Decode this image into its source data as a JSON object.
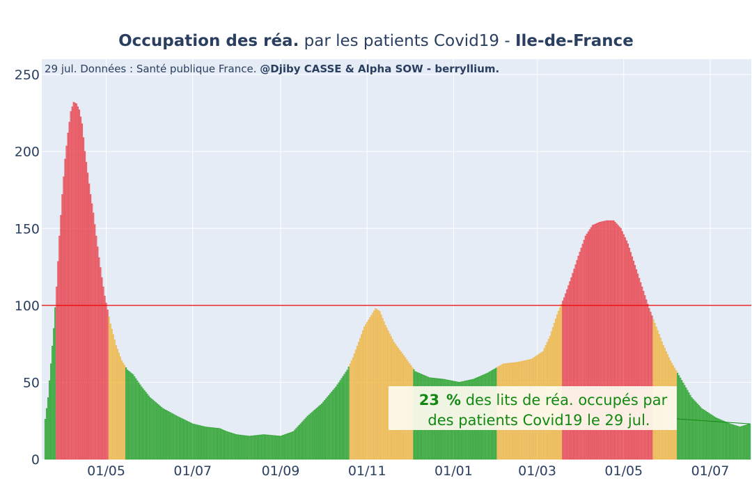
{
  "title": {
    "part1": "Occupation des réa.",
    "part2": " par les patients Covid19 - ",
    "part3": "Ile-de-France"
  },
  "subtitle": {
    "prefix": "29 jul. Données : Santé publique France. ",
    "credits": "@Djiby CASSE & Alpha SOW - berryllium."
  },
  "annotation": {
    "percent": "23",
    "percent_sign": "%",
    "line1_rest": " des lits de réa. occupés par",
    "line2": "des patients Covid19 le 29 jul."
  },
  "colors": {
    "plot_bg": "#e5ecf6",
    "grid": "#ffffff",
    "threshold_line": "#ee0000",
    "green": "#119911",
    "orange": "#f0b030",
    "red": "#e8303a",
    "text": "#2a3f5f",
    "annotation_text": "#118811",
    "annotation_bg": "#fdfaee"
  },
  "chart_data": {
    "type": "bar",
    "x_start": "2020-03-19",
    "x_end": "2021-07-29",
    "ylim": [
      0,
      260
    ],
    "yticks": [
      0,
      50,
      100,
      150,
      200,
      250
    ],
    "xticks": [
      {
        "date": "2020-05-01",
        "label": "01/05"
      },
      {
        "date": "2020-07-01",
        "label": "01/07"
      },
      {
        "date": "2020-09-01",
        "label": "01/09"
      },
      {
        "date": "2020-11-01",
        "label": "01/11"
      },
      {
        "date": "2021-01-01",
        "label": "01/01"
      },
      {
        "date": "2021-03-01",
        "label": "01/03"
      },
      {
        "date": "2021-05-01",
        "label": "01/05"
      },
      {
        "date": "2021-07-01",
        "label": "01/07"
      }
    ],
    "threshold": 100,
    "grid": true,
    "legend": "none",
    "points": [
      [
        "2020-03-19",
        26
      ],
      [
        "2020-03-21",
        40
      ],
      [
        "2020-03-23",
        62
      ],
      [
        "2020-03-25",
        85
      ],
      [
        "2020-03-27",
        112
      ],
      [
        "2020-03-29",
        145
      ],
      [
        "2020-03-31",
        172
      ],
      [
        "2020-04-02",
        195
      ],
      [
        "2020-04-04",
        212
      ],
      [
        "2020-04-06",
        226
      ],
      [
        "2020-04-08",
        232
      ],
      [
        "2020-04-10",
        231
      ],
      [
        "2020-04-12",
        227
      ],
      [
        "2020-04-14",
        218
      ],
      [
        "2020-04-16",
        200
      ],
      [
        "2020-04-18",
        186
      ],
      [
        "2020-04-20",
        172
      ],
      [
        "2020-04-22",
        160
      ],
      [
        "2020-04-24",
        145
      ],
      [
        "2020-04-26",
        131
      ],
      [
        "2020-04-28",
        118
      ],
      [
        "2020-04-30",
        106
      ],
      [
        "2020-05-02",
        97
      ],
      [
        "2020-05-04",
        88
      ],
      [
        "2020-05-08",
        74
      ],
      [
        "2020-05-12",
        64
      ],
      [
        "2020-05-16",
        58
      ],
      [
        "2020-05-20",
        55
      ],
      [
        "2020-05-26",
        47
      ],
      [
        "2020-06-01",
        40
      ],
      [
        "2020-06-10",
        33
      ],
      [
        "2020-06-20",
        28
      ],
      [
        "2020-07-01",
        23
      ],
      [
        "2020-07-10",
        21
      ],
      [
        "2020-07-20",
        20
      ],
      [
        "2020-07-25",
        18
      ],
      [
        "2020-08-01",
        16
      ],
      [
        "2020-08-10",
        15
      ],
      [
        "2020-08-20",
        16
      ],
      [
        "2020-09-01",
        15
      ],
      [
        "2020-09-10",
        18
      ],
      [
        "2020-09-20",
        28
      ],
      [
        "2020-09-30",
        36
      ],
      [
        "2020-10-10",
        47
      ],
      [
        "2020-10-18",
        58
      ],
      [
        "2020-10-22",
        66
      ],
      [
        "2020-10-26",
        76
      ],
      [
        "2020-10-30",
        86
      ],
      [
        "2020-11-03",
        92
      ],
      [
        "2020-11-07",
        98
      ],
      [
        "2020-11-10",
        96
      ],
      [
        "2020-11-14",
        87
      ],
      [
        "2020-11-20",
        76
      ],
      [
        "2020-11-28",
        66
      ],
      [
        "2020-12-05",
        57
      ],
      [
        "2020-12-15",
        53
      ],
      [
        "2020-12-25",
        52
      ],
      [
        "2021-01-05",
        50
      ],
      [
        "2021-01-15",
        52
      ],
      [
        "2021-01-25",
        56
      ],
      [
        "2021-02-05",
        62
      ],
      [
        "2021-02-15",
        63
      ],
      [
        "2021-02-25",
        65
      ],
      [
        "2021-03-05",
        70
      ],
      [
        "2021-03-10",
        80
      ],
      [
        "2021-03-15",
        94
      ],
      [
        "2021-03-20",
        105
      ],
      [
        "2021-03-25",
        118
      ],
      [
        "2021-03-30",
        132
      ],
      [
        "2021-04-04",
        145
      ],
      [
        "2021-04-09",
        152
      ],
      [
        "2021-04-14",
        154
      ],
      [
        "2021-04-19",
        155
      ],
      [
        "2021-04-24",
        155
      ],
      [
        "2021-04-29",
        150
      ],
      [
        "2021-05-04",
        140
      ],
      [
        "2021-05-09",
        126
      ],
      [
        "2021-05-14",
        112
      ],
      [
        "2021-05-19",
        98
      ],
      [
        "2021-05-24",
        86
      ],
      [
        "2021-05-29",
        74
      ],
      [
        "2021-06-03",
        64
      ],
      [
        "2021-06-08",
        56
      ],
      [
        "2021-06-13",
        48
      ],
      [
        "2021-06-18",
        40
      ],
      [
        "2021-06-25",
        33
      ],
      [
        "2021-07-05",
        27
      ],
      [
        "2021-07-15",
        23
      ],
      [
        "2021-07-22",
        21
      ],
      [
        "2021-07-29",
        23
      ]
    ],
    "color_periods": [
      {
        "start": "2020-03-19",
        "end": "2020-03-26",
        "color": "green"
      },
      {
        "start": "2020-03-27",
        "end": "2020-05-02",
        "color": "red"
      },
      {
        "start": "2020-05-03",
        "end": "2020-05-14",
        "color": "orange"
      },
      {
        "start": "2020-05-15",
        "end": "2020-10-19",
        "color": "green"
      },
      {
        "start": "2020-10-20",
        "end": "2020-12-03",
        "color": "orange"
      },
      {
        "start": "2020-12-04",
        "end": "2021-01-31",
        "color": "green"
      },
      {
        "start": "2021-02-01",
        "end": "2021-03-18",
        "color": "orange"
      },
      {
        "start": "2021-03-19",
        "end": "2021-05-21",
        "color": "red"
      },
      {
        "start": "2021-05-22",
        "end": "2021-06-07",
        "color": "orange"
      },
      {
        "start": "2021-06-08",
        "end": "2021-07-29",
        "color": "green"
      }
    ]
  }
}
